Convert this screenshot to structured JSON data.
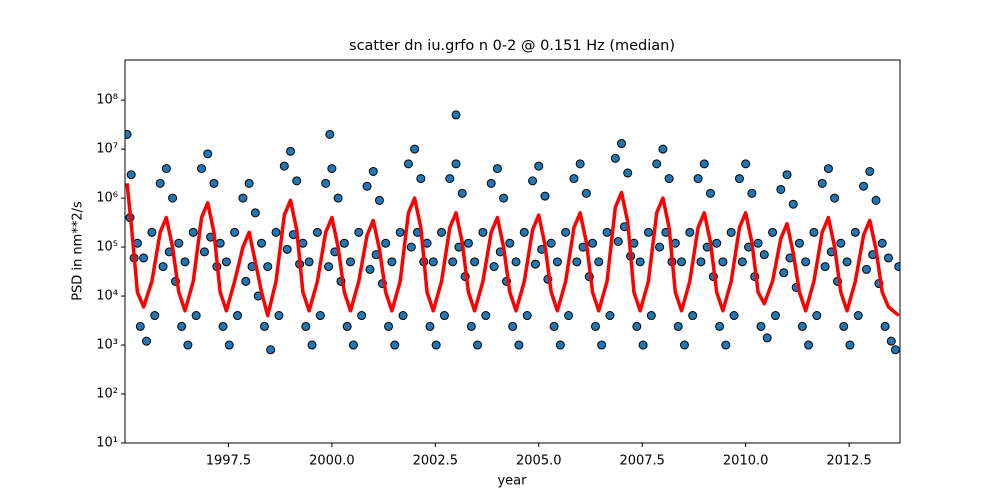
{
  "chart_data": {
    "type": "scatter",
    "title": "scatter dn iu.grfo n 0-2 @ 0.151 Hz (median)",
    "xlabel": "year",
    "ylabel": "PSD in nm**2/s",
    "yscale": "log",
    "xlim": [
      1995.0,
      2013.73
    ],
    "ylim": [
      10,
      660000000
    ],
    "xticks": [
      1997.5,
      {
        "value": 2000.0,
        "label": "2000.0"
      },
      2002.5,
      {
        "value": 2005.0,
        "label": "2005.0"
      },
      2007.5,
      {
        "value": 2010.0,
        "label": "2010.0"
      },
      2012.5
    ],
    "yticks": [
      {
        "value": 10,
        "label": "10¹"
      },
      {
        "value": 100,
        "label": "10²"
      },
      {
        "value": 1000,
        "label": "10³"
      },
      {
        "value": 10000,
        "label": "10⁴"
      },
      {
        "value": 100000,
        "label": "10⁵"
      },
      {
        "value": 1000000,
        "label": "10⁶"
      },
      {
        "value": 10000000,
        "label": "10⁷"
      },
      {
        "value": 100000000,
        "label": "10⁸"
      }
    ],
    "layers": [
      {
        "type": "scatter",
        "color": "#1f77b4",
        "edgecolor": "#000000",
        "x": [
          1995.05,
          1995.15,
          1995.3,
          1995.45,
          1995.65,
          1995.85,
          1996.0,
          1996.15,
          1996.3,
          1996.45,
          1996.65,
          1996.85,
          1997.0,
          1997.15,
          1997.3,
          1997.45,
          1997.65,
          1997.85,
          1998.0,
          1998.15,
          1998.3,
          1998.45,
          1998.65,
          1998.85,
          1999.0,
          1999.15,
          1999.3,
          1999.45,
          1999.65,
          1999.85,
          2000.0,
          2000.15,
          2000.3,
          2000.45,
          2000.65,
          2000.85,
          2001.0,
          2001.15,
          2001.3,
          2001.45,
          2001.65,
          2001.85,
          2002.0,
          2002.15,
          2002.3,
          2002.45,
          2002.65,
          2002.85,
          2003.0,
          2003.15,
          2003.3,
          2003.45,
          2003.65,
          2003.85,
          2004.0,
          2004.15,
          2004.3,
          2004.45,
          2004.65,
          2004.85,
          2005.0,
          2005.15,
          2005.3,
          2005.45,
          2005.65,
          2005.85,
          2006.0,
          2006.15,
          2006.3,
          2006.45,
          2006.65,
          2006.85,
          2007.0,
          2007.15,
          2007.3,
          2007.45,
          2007.65,
          2007.85,
          2008.0,
          2008.15,
          2008.3,
          2008.45,
          2008.65,
          2008.85,
          2009.0,
          2009.15,
          2009.3,
          2009.45,
          2009.65,
          2009.85,
          2010.0,
          2010.15,
          2010.3,
          2010.45,
          2010.65,
          2010.85,
          2011.0,
          2011.15,
          2011.3,
          2011.45,
          2011.65,
          2011.85,
          2012.0,
          2012.15,
          2012.3,
          2012.45,
          2012.65,
          2012.85,
          2013.0,
          2013.15,
          2013.3,
          2013.45,
          2013.7,
          1995.12,
          1995.22,
          1995.37,
          1995.52,
          1995.72,
          1995.92,
          1996.07,
          1996.22,
          1996.37,
          1996.52,
          1996.72,
          1996.92,
          1997.07,
          1997.22,
          1997.37,
          1997.52,
          1997.72,
          1997.92,
          1998.07,
          1998.22,
          1998.37,
          1998.52,
          1998.72,
          1998.92,
          1999.07,
          1999.22,
          1999.37,
          1999.52,
          1999.72,
          1999.92,
          2000.07,
          2000.22,
          2000.37,
          2000.52,
          2000.72,
          2000.92,
          2001.07,
          2001.22,
          2001.37,
          2001.52,
          2001.72,
          2001.92,
          2002.07,
          2002.22,
          2002.37,
          2002.52,
          2002.72,
          2002.92,
          2003.07,
          2003.22,
          2003.37,
          2003.52,
          2003.72,
          2003.92,
          2004.07,
          2004.22,
          2004.37,
          2004.52,
          2004.72,
          2004.92,
          2005.07,
          2005.22,
          2005.37,
          2005.52,
          2005.72,
          2005.92,
          2006.07,
          2006.22,
          2006.37,
          2006.52,
          2006.72,
          2006.92,
          2007.07,
          2007.22,
          2007.37,
          2007.52,
          2007.72,
          2007.92,
          2008.07,
          2008.22,
          2008.37,
          2008.52,
          2008.72,
          2008.92,
          2009.07,
          2009.22,
          2009.37,
          2009.52,
          2009.72,
          2009.92,
          2010.07,
          2010.22,
          2010.37,
          2010.52,
          2010.72,
          2010.92,
          2011.07,
          2011.22,
          2011.37,
          2011.52,
          2011.72,
          2011.92,
          2012.07,
          2012.22,
          2012.37,
          2012.52,
          2012.72,
          2012.92,
          2013.07,
          2013.22,
          2013.37,
          2013.52,
          2013.62,
          2003.0,
          1999.95
        ],
        "values": [
          20000000.0,
          3000000.0,
          120000.0,
          60000.0,
          200000.0,
          2000000.0,
          4000000.0,
          1000000.0,
          120000.0,
          50000.0,
          200000.0,
          4000000.0,
          8000000.0,
          2000000.0,
          120000.0,
          50000.0,
          200000.0,
          1000000.0,
          2000000.0,
          500000.0,
          120000.0,
          40000.0,
          200000.0,
          4500000.0,
          9000000.0,
          2250000.0,
          120000.0,
          50000.0,
          200000.0,
          2000000.0,
          4000000.0,
          1000000.0,
          120000.0,
          50000.0,
          200000.0,
          1750000.0,
          3500000.0,
          900000.0,
          120000.0,
          50000.0,
          200000.0,
          5000000.0,
          10000000.0,
          2500000.0,
          120000.0,
          50000.0,
          200000.0,
          2500000.0,
          5000000.0,
          1250000.0,
          120000.0,
          50000.0,
          200000.0,
          2000000.0,
          4000000.0,
          1000000.0,
          120000.0,
          50000.0,
          200000.0,
          2250000.0,
          4500000.0,
          1100000.0,
          120000.0,
          50000.0,
          200000.0,
          2500000.0,
          5000000.0,
          1250000.0,
          120000.0,
          50000.0,
          200000.0,
          6500000.0,
          13000000.0,
          3250000.0,
          120000.0,
          50000.0,
          200000.0,
          5000000.0,
          10000000.0,
          2500000.0,
          120000.0,
          50000.0,
          200000.0,
          2500000.0,
          5000000.0,
          1250000.0,
          120000.0,
          50000.0,
          200000.0,
          2500000.0,
          5000000.0,
          1250000.0,
          120000.0,
          70000.0,
          200000.0,
          1500000.0,
          3000000.0,
          750000.0,
          120000.0,
          50000.0,
          200000.0,
          2000000.0,
          4000000.0,
          1000000.0,
          120000.0,
          50000.0,
          200000.0,
          1750000.0,
          3500000.0,
          900000.0,
          120000.0,
          60000.0,
          40000.0,
          400000.0,
          60000.0,
          2400,
          1200,
          4000,
          40000.0,
          80000.0,
          20000.0,
          2400,
          1000,
          4000,
          80000.0,
          160000.0,
          40000.0,
          2400,
          1000,
          4000,
          20000.0,
          40000.0,
          10000.0,
          2400,
          800,
          4000,
          90000.0,
          180000.0,
          45000.0,
          2400,
          1000,
          4000,
          40000.0,
          80000.0,
          20000.0,
          2400,
          1000,
          4000,
          35000.0,
          70000.0,
          18000.0,
          2400,
          1000,
          4000,
          100000.0,
          200000.0,
          50000.0,
          2400,
          1000,
          4000,
          50000.0,
          100000.0,
          25000.0,
          2400,
          1000,
          4000,
          40000.0,
          80000.0,
          20000.0,
          2400,
          1000,
          4000,
          45000.0,
          90000.0,
          22000.0,
          2400,
          1000,
          4000,
          50000.0,
          100000.0,
          25000.0,
          2400,
          1000,
          4000,
          130000.0,
          260000.0,
          65000.0,
          2400,
          1000,
          4000,
          100000.0,
          200000.0,
          50000.0,
          2400,
          1000,
          4000,
          50000.0,
          100000.0,
          25000.0,
          2400,
          1000,
          4000,
          50000.0,
          100000.0,
          25000.0,
          2400,
          1400,
          4000,
          30000.0,
          60000.0,
          15000.0,
          2400,
          1000,
          4000,
          40000.0,
          80000.0,
          20000.0,
          2400,
          1000,
          4000,
          35000.0,
          70000.0,
          18000.0,
          2400,
          1200,
          800,
          50000000.0,
          20000000.0
        ]
      },
      {
        "type": "line",
        "color": "#ff0000",
        "x": [
          1995.05,
          1995.15,
          1995.3,
          1995.45,
          1995.65,
          1995.85,
          1996.0,
          1996.15,
          1996.3,
          1996.45,
          1996.65,
          1996.85,
          1997.0,
          1997.15,
          1997.3,
          1997.45,
          1997.65,
          1997.85,
          1998.0,
          1998.15,
          1998.3,
          1998.45,
          1998.65,
          1998.85,
          1999.0,
          1999.15,
          1999.3,
          1999.45,
          1999.65,
          1999.85,
          2000.0,
          2000.15,
          2000.3,
          2000.45,
          2000.65,
          2000.85,
          2001.0,
          2001.15,
          2001.3,
          2001.45,
          2001.65,
          2001.85,
          2002.0,
          2002.15,
          2002.3,
          2002.45,
          2002.65,
          2002.85,
          2003.0,
          2003.15,
          2003.3,
          2003.45,
          2003.65,
          2003.85,
          2004.0,
          2004.15,
          2004.3,
          2004.45,
          2004.65,
          2004.85,
          2005.0,
          2005.15,
          2005.3,
          2005.45,
          2005.65,
          2005.85,
          2006.0,
          2006.15,
          2006.3,
          2006.45,
          2006.65,
          2006.85,
          2007.0,
          2007.15,
          2007.3,
          2007.45,
          2007.65,
          2007.85,
          2008.0,
          2008.15,
          2008.3,
          2008.45,
          2008.65,
          2008.85,
          2009.0,
          2009.15,
          2009.3,
          2009.45,
          2009.65,
          2009.85,
          2010.0,
          2010.15,
          2010.3,
          2010.45,
          2010.65,
          2010.85,
          2011.0,
          2011.15,
          2011.3,
          2011.45,
          2011.65,
          2011.85,
          2012.0,
          2012.15,
          2012.3,
          2012.45,
          2012.65,
          2012.85,
          2013.0,
          2013.15,
          2013.3,
          2013.45,
          2013.7
        ],
        "values": [
          2000000,
          300000,
          12000,
          6000,
          20000,
          200000,
          400000,
          100000,
          12000,
          5000,
          20000,
          400000,
          800000,
          200000,
          12000,
          5000,
          20000,
          100000,
          200000,
          50000,
          12000,
          4000,
          20000,
          450000,
          900000,
          225000,
          12000,
          5000,
          20000,
          200000,
          400000,
          100000,
          12000,
          5000,
          20000,
          175000,
          350000,
          90000,
          12000,
          5000,
          20000,
          500000,
          1000000,
          250000,
          12000,
          5000,
          20000,
          250000,
          500000,
          125000,
          12000,
          5000,
          20000,
          200000,
          400000,
          100000,
          12000,
          5000,
          20000,
          225000,
          450000,
          110000,
          12000,
          5000,
          20000,
          250000,
          500000,
          125000,
          12000,
          5000,
          20000,
          650000,
          1300000,
          325000,
          12000,
          5000,
          20000,
          500000,
          1000000,
          250000,
          12000,
          5000,
          20000,
          250000,
          500000,
          125000,
          12000,
          5000,
          20000,
          250000,
          500000,
          125000,
          12000,
          7000,
          20000,
          150000,
          300000,
          75000,
          12000,
          5000,
          20000,
          200000,
          400000,
          100000,
          12000,
          5000,
          20000,
          175000,
          350000,
          90000,
          12000,
          6000,
          4000
        ]
      }
    ]
  }
}
